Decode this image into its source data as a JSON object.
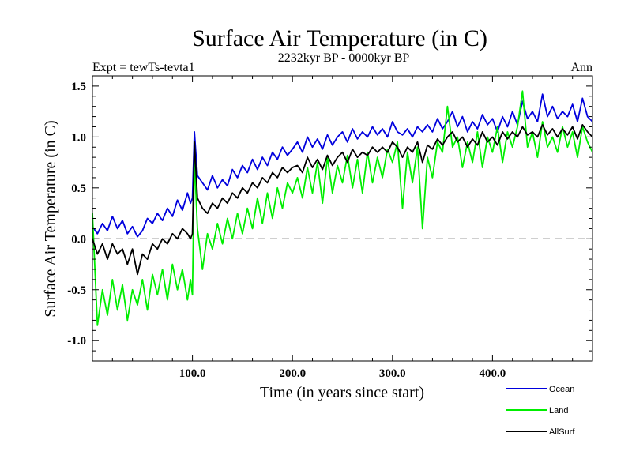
{
  "chart_data": {
    "type": "line",
    "title": "Surface Air Temperature (in C)",
    "subtitle": "2232kyr BP - 0000kyr BP",
    "left_annotation": "Expt = tewTs-tevta1",
    "right_annotation": "Ann",
    "xlabel": "Time (in years since start)",
    "ylabel": "Surface Air Temperature (in C)",
    "xlim": [
      0,
      500
    ],
    "ylim": [
      -1.2,
      1.6
    ],
    "x_ticks": [
      100,
      200,
      300,
      400
    ],
    "x_tick_labels": [
      "100.0",
      "200.0",
      "300.0",
      "400.0"
    ],
    "y_ticks": [
      -1.0,
      -0.5,
      0.0,
      0.5,
      1.0,
      1.5
    ],
    "y_tick_labels": [
      "-1.0",
      "-0.5",
      "0.0",
      "0.5",
      "1.0",
      "1.5"
    ],
    "reference_line": {
      "y": 0.0,
      "style": "dashed",
      "color": "#808080"
    },
    "legend_position": "bottom-right",
    "series": [
      {
        "name": "Ocean",
        "color": "#0000dd",
        "x": [
          0,
          5,
          10,
          15,
          20,
          25,
          30,
          35,
          40,
          45,
          50,
          55,
          60,
          65,
          70,
          75,
          80,
          85,
          90,
          95,
          98,
          100,
          102,
          105,
          110,
          115,
          120,
          125,
          130,
          135,
          140,
          145,
          150,
          155,
          160,
          165,
          170,
          175,
          180,
          185,
          190,
          195,
          200,
          205,
          210,
          215,
          220,
          225,
          230,
          235,
          240,
          245,
          250,
          255,
          260,
          265,
          270,
          275,
          280,
          285,
          290,
          295,
          300,
          305,
          310,
          315,
          320,
          325,
          330,
          335,
          340,
          345,
          350,
          355,
          360,
          365,
          370,
          375,
          380,
          385,
          390,
          395,
          400,
          405,
          410,
          415,
          420,
          425,
          430,
          435,
          440,
          445,
          450,
          455,
          460,
          465,
          470,
          475,
          480,
          485,
          490,
          495,
          500
        ],
        "values": [
          0.12,
          0.05,
          0.15,
          0.08,
          0.22,
          0.1,
          0.18,
          0.05,
          0.12,
          0.02,
          0.08,
          0.2,
          0.15,
          0.25,
          0.18,
          0.3,
          0.22,
          0.38,
          0.28,
          0.45,
          0.35,
          0.4,
          1.05,
          0.62,
          0.55,
          0.48,
          0.62,
          0.5,
          0.58,
          0.52,
          0.68,
          0.6,
          0.72,
          0.65,
          0.78,
          0.68,
          0.8,
          0.72,
          0.85,
          0.78,
          0.9,
          0.82,
          0.88,
          0.95,
          0.85,
          1.0,
          0.9,
          0.98,
          0.88,
          1.02,
          0.92,
          1.0,
          1.05,
          0.95,
          1.08,
          0.98,
          1.05,
          1.0,
          1.1,
          1.02,
          1.08,
          1.0,
          1.15,
          1.05,
          1.02,
          1.08,
          1.0,
          1.1,
          1.05,
          1.12,
          1.05,
          1.18,
          1.08,
          1.15,
          1.25,
          1.1,
          1.2,
          1.05,
          1.15,
          1.08,
          1.22,
          1.12,
          1.18,
          1.05,
          1.2,
          1.1,
          1.25,
          1.12,
          1.35,
          1.18,
          1.25,
          1.15,
          1.42,
          1.2,
          1.3,
          1.18,
          1.25,
          1.2,
          1.32,
          1.15,
          1.38,
          1.2,
          1.15
        ]
      },
      {
        "name": "Land",
        "color": "#00ee00",
        "x": [
          0,
          5,
          10,
          15,
          20,
          25,
          30,
          35,
          40,
          45,
          50,
          55,
          60,
          65,
          70,
          75,
          80,
          85,
          90,
          95,
          98,
          100,
          102,
          105,
          110,
          115,
          120,
          125,
          130,
          135,
          140,
          145,
          150,
          155,
          160,
          165,
          170,
          175,
          180,
          185,
          190,
          195,
          200,
          205,
          210,
          215,
          220,
          225,
          230,
          235,
          240,
          245,
          250,
          255,
          260,
          265,
          270,
          275,
          280,
          285,
          290,
          295,
          300,
          305,
          310,
          315,
          320,
          325,
          330,
          335,
          340,
          345,
          350,
          355,
          360,
          365,
          370,
          375,
          380,
          385,
          390,
          395,
          400,
          405,
          410,
          415,
          420,
          425,
          430,
          435,
          440,
          445,
          450,
          455,
          460,
          465,
          470,
          475,
          480,
          485,
          490,
          495,
          500
        ],
        "values": [
          0.25,
          -0.85,
          -0.5,
          -0.75,
          -0.4,
          -0.7,
          -0.45,
          -0.8,
          -0.5,
          -0.65,
          -0.4,
          -0.7,
          -0.35,
          -0.55,
          -0.3,
          -0.6,
          -0.25,
          -0.5,
          -0.3,
          -0.6,
          -0.4,
          -0.55,
          0.8,
          0.1,
          -0.3,
          0.05,
          -0.1,
          0.15,
          -0.05,
          0.2,
          0.0,
          0.25,
          0.05,
          0.3,
          0.1,
          0.4,
          0.15,
          0.45,
          0.2,
          0.5,
          0.3,
          0.55,
          0.45,
          0.6,
          0.4,
          0.7,
          0.45,
          0.75,
          0.35,
          0.8,
          0.45,
          0.72,
          0.55,
          0.82,
          0.5,
          0.78,
          0.45,
          0.85,
          0.55,
          0.8,
          0.6,
          0.88,
          0.75,
          0.95,
          0.3,
          0.85,
          0.55,
          0.9,
          0.1,
          0.8,
          0.6,
          0.95,
          0.85,
          1.3,
          0.9,
          1.0,
          0.7,
          0.95,
          0.75,
          1.05,
          0.7,
          1.0,
          0.85,
          1.1,
          0.75,
          1.05,
          0.9,
          1.1,
          1.45,
          0.9,
          1.05,
          0.8,
          1.15,
          0.9,
          1.0,
          0.85,
          1.1,
          0.9,
          1.05,
          0.8,
          1.1,
          0.95,
          0.85
        ]
      },
      {
        "name": "AllSurf",
        "color": "#000000",
        "x": [
          0,
          5,
          10,
          15,
          20,
          25,
          30,
          35,
          40,
          45,
          50,
          55,
          60,
          65,
          70,
          75,
          80,
          85,
          90,
          95,
          98,
          100,
          102,
          105,
          110,
          115,
          120,
          125,
          130,
          135,
          140,
          145,
          150,
          155,
          160,
          165,
          170,
          175,
          180,
          185,
          190,
          195,
          200,
          205,
          210,
          215,
          220,
          225,
          230,
          235,
          240,
          245,
          250,
          255,
          260,
          265,
          270,
          275,
          280,
          285,
          290,
          295,
          300,
          305,
          310,
          315,
          320,
          325,
          330,
          335,
          340,
          345,
          350,
          355,
          360,
          365,
          370,
          375,
          380,
          385,
          390,
          395,
          400,
          405,
          410,
          415,
          420,
          425,
          430,
          435,
          440,
          445,
          450,
          455,
          460,
          465,
          470,
          475,
          480,
          485,
          490,
          495,
          500
        ],
        "values": [
          0.0,
          -0.15,
          -0.05,
          -0.2,
          -0.05,
          -0.15,
          -0.1,
          -0.25,
          -0.1,
          -0.35,
          -0.15,
          -0.2,
          -0.05,
          -0.1,
          0.0,
          -0.05,
          0.05,
          0.0,
          0.1,
          0.05,
          0.0,
          0.05,
          0.95,
          0.4,
          0.3,
          0.25,
          0.35,
          0.3,
          0.4,
          0.35,
          0.45,
          0.4,
          0.5,
          0.45,
          0.55,
          0.5,
          0.6,
          0.55,
          0.65,
          0.6,
          0.7,
          0.65,
          0.7,
          0.72,
          0.65,
          0.8,
          0.7,
          0.78,
          0.68,
          0.82,
          0.72,
          0.8,
          0.85,
          0.75,
          0.88,
          0.8,
          0.85,
          0.82,
          0.9,
          0.85,
          0.9,
          0.85,
          0.95,
          0.9,
          0.8,
          0.9,
          0.85,
          0.95,
          0.75,
          0.92,
          0.88,
          0.98,
          0.92,
          1.0,
          1.05,
          0.95,
          1.0,
          0.9,
          0.98,
          0.92,
          1.05,
          0.95,
          1.0,
          0.92,
          1.05,
          0.98,
          1.05,
          1.0,
          1.1,
          1.02,
          1.05,
          1.0,
          1.12,
          1.02,
          1.08,
          1.0,
          1.08,
          1.02,
          1.1,
          0.98,
          1.12,
          1.05,
          1.0
        ]
      }
    ]
  }
}
